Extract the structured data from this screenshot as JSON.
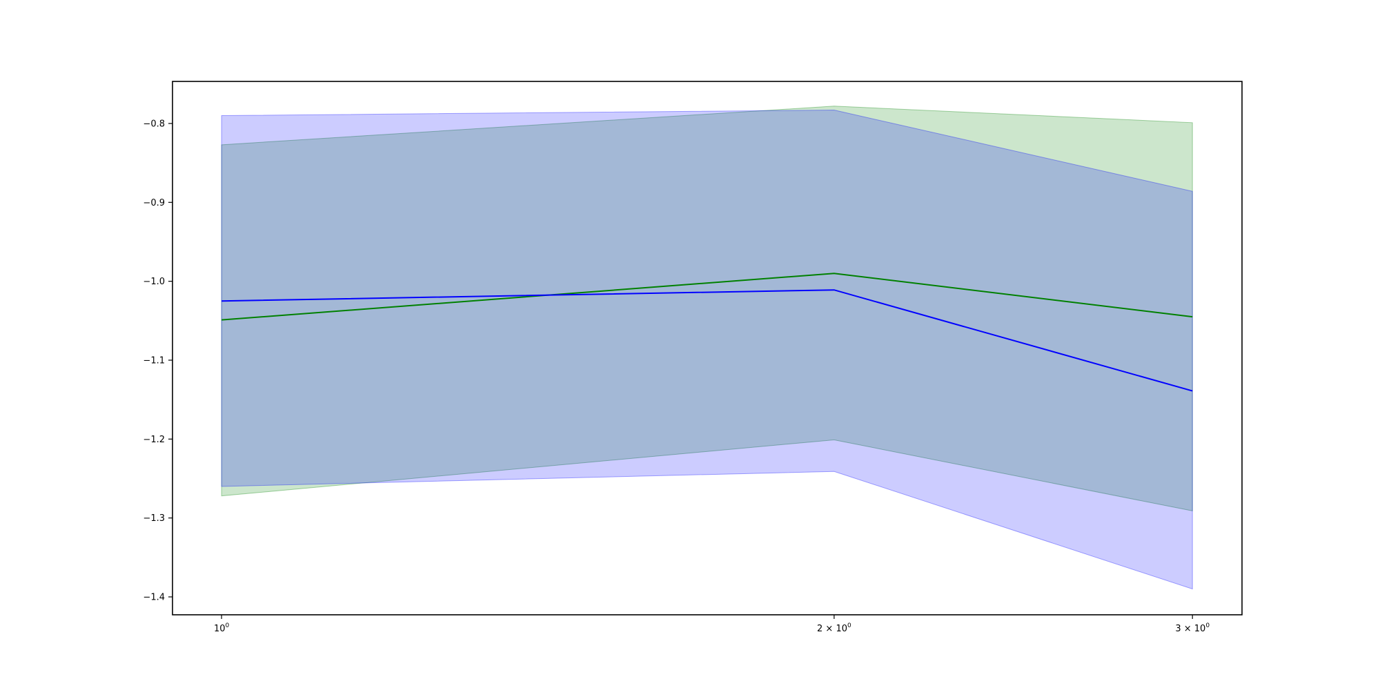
{
  "style": {
    "background": "#ffffff",
    "spine_color": "#000000",
    "tick_color": "#000000",
    "text_color": "#000000"
  },
  "chart_data": {
    "type": "line",
    "title": "",
    "xlabel": "",
    "ylabel": "",
    "x_scale": "log",
    "grid": false,
    "legend": false,
    "x": [
      1,
      2,
      3
    ],
    "xlim": [
      0.946,
      3.173
    ],
    "ylim": [
      -1.4227,
      -0.7467
    ],
    "series": [
      {
        "name": "green-series",
        "color": "#008000",
        "values": [
          -1.049,
          -0.99,
          -1.045
        ],
        "band_high": [
          -0.827,
          -0.778,
          -0.799
        ],
        "band_low": [
          -1.272,
          -1.201,
          -1.291
        ],
        "band_opacity": 0.2
      },
      {
        "name": "blue-series",
        "color": "#0000ff",
        "values": [
          -1.025,
          -1.011,
          -1.139
        ],
        "band_high": [
          -0.79,
          -0.783,
          -0.886
        ],
        "band_low": [
          -1.26,
          -1.241,
          -1.39
        ],
        "band_opacity": 0.2
      }
    ],
    "x_ticks": [
      {
        "value": 1,
        "base": "10",
        "sup": "0"
      },
      {
        "value": 2,
        "base": "2 × 10",
        "sup": "0"
      },
      {
        "value": 3,
        "base": "3 × 10",
        "sup": "0"
      }
    ],
    "y_ticks": [
      {
        "value": -0.8,
        "label": "−0.8"
      },
      {
        "value": -0.9,
        "label": "−0.9"
      },
      {
        "value": -1.0,
        "label": "−1.0"
      },
      {
        "value": -1.1,
        "label": "−1.1"
      },
      {
        "value": -1.2,
        "label": "−1.2"
      },
      {
        "value": -1.3,
        "label": "−1.3"
      },
      {
        "value": -1.4,
        "label": "−1.4"
      }
    ]
  }
}
